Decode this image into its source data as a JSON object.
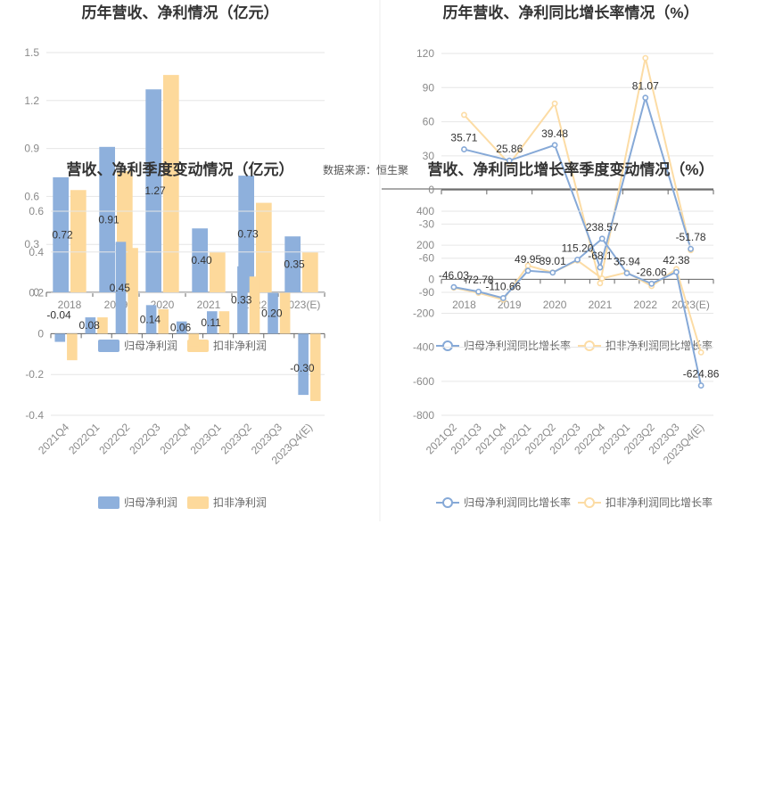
{
  "source_text": "数据来源：恒生聚",
  "colors": {
    "blue": "#8eb0dc",
    "orange": "#fdd99b",
    "blue_line": "#86a9d7",
    "orange_line": "#fcdca5",
    "grid": "#e6e6e6",
    "axis": "#666666"
  },
  "chart_data": [
    {
      "id": "annual_bar",
      "type": "bar",
      "title": "历年营收、净利情况（亿元）",
      "categories": [
        "2018",
        "2019",
        "2020",
        "2021",
        "2022",
        "2023(E)"
      ],
      "ylim": [
        0,
        1.5
      ],
      "yticks": [
        0,
        0.3,
        0.6,
        0.9,
        1.2,
        1.5
      ],
      "series": [
        {
          "name": "归母净利润",
          "values": [
            0.72,
            0.91,
            1.27,
            0.4,
            0.73,
            0.35
          ],
          "labels": [
            "0.72",
            "0.91",
            "1.27",
            "0.40",
            "0.73",
            "0.35"
          ]
        },
        {
          "name": "扣非净利润",
          "values": [
            0.64,
            0.76,
            1.36,
            0.25,
            0.56,
            0.25
          ]
        }
      ],
      "legend": "bottom"
    },
    {
      "id": "annual_line",
      "type": "line",
      "title": "历年营收、净利同比增长率情况（%）",
      "categories": [
        "2018",
        "2019",
        "2020",
        "2021",
        "2022",
        "2023(E)"
      ],
      "ylim": [
        -90,
        120
      ],
      "yticks": [
        -90,
        -60,
        -30,
        0,
        30,
        60,
        90,
        120
      ],
      "series": [
        {
          "name": "归母净利润同比增长率",
          "values": [
            35.71,
            25.86,
            39.48,
            -68.1,
            81.07,
            -51.78
          ],
          "labels": [
            "35.71",
            "25.86",
            "39.48",
            "-68.1",
            "81.07",
            "-51.78"
          ]
        },
        {
          "name": "扣非净利润同比增长率",
          "values": [
            66,
            23,
            76,
            -82,
            116,
            -53
          ]
        }
      ],
      "legend": "bottom"
    },
    {
      "id": "quarter_bar",
      "type": "bar",
      "title": "营收、净利季度变动情况（亿元）",
      "categories": [
        "2021Q4",
        "2022Q1",
        "2022Q2",
        "2022Q3",
        "2022Q4",
        "2023Q1",
        "2023Q2",
        "2023Q3",
        "2023Q4(E)"
      ],
      "ylim": [
        -0.4,
        0.6
      ],
      "yticks": [
        -0.4,
        -0.2,
        0,
        0.2,
        0.4,
        0.6
      ],
      "series": [
        {
          "name": "归母净利润",
          "values": [
            -0.04,
            0.08,
            0.45,
            0.14,
            0.06,
            0.11,
            0.33,
            0.2,
            -0.3
          ],
          "labels": [
            "-0.04",
            "0.08",
            "0.45",
            "0.14",
            "0.06",
            "0.11",
            "0.33",
            "0.20",
            "-0.30"
          ]
        },
        {
          "name": "扣非净利润",
          "values": [
            -0.13,
            0.08,
            0.42,
            0.12,
            -0.06,
            0.11,
            0.28,
            0.2,
            -0.33
          ]
        }
      ],
      "legend": "bottom"
    },
    {
      "id": "quarter_line",
      "type": "line",
      "title": "营收、净利同比增长率季度变动情况（%）",
      "categories": [
        "2021Q2",
        "2021Q3",
        "2021Q4",
        "2022Q1",
        "2022Q2",
        "2022Q3",
        "2022Q4",
        "2023Q1",
        "2023Q2",
        "2023Q3",
        "2023Q4(E)"
      ],
      "ylim": [
        -800,
        400
      ],
      "yticks": [
        -800,
        -600,
        -400,
        -200,
        0,
        200,
        400
      ],
      "series": [
        {
          "name": "归母净利润同比增长率",
          "values": [
            -46.03,
            -72.78,
            -110.66,
            49.95,
            39.01,
            115.2,
            238.57,
            35.94,
            -26.06,
            42.38,
            -624.86
          ],
          "labels": [
            "-46.03",
            "-72.78",
            "-110.66",
            "49.95",
            "39.01",
            "115.20",
            "238.57",
            "35.94",
            "-26.06",
            "42.38",
            "-624.86"
          ]
        },
        {
          "name": "扣非净利润同比增长率",
          "values": [
            -50,
            -80,
            -120,
            80,
            40,
            110,
            5,
            40,
            -40,
            60,
            -430
          ]
        }
      ],
      "legend": "bottom"
    }
  ]
}
